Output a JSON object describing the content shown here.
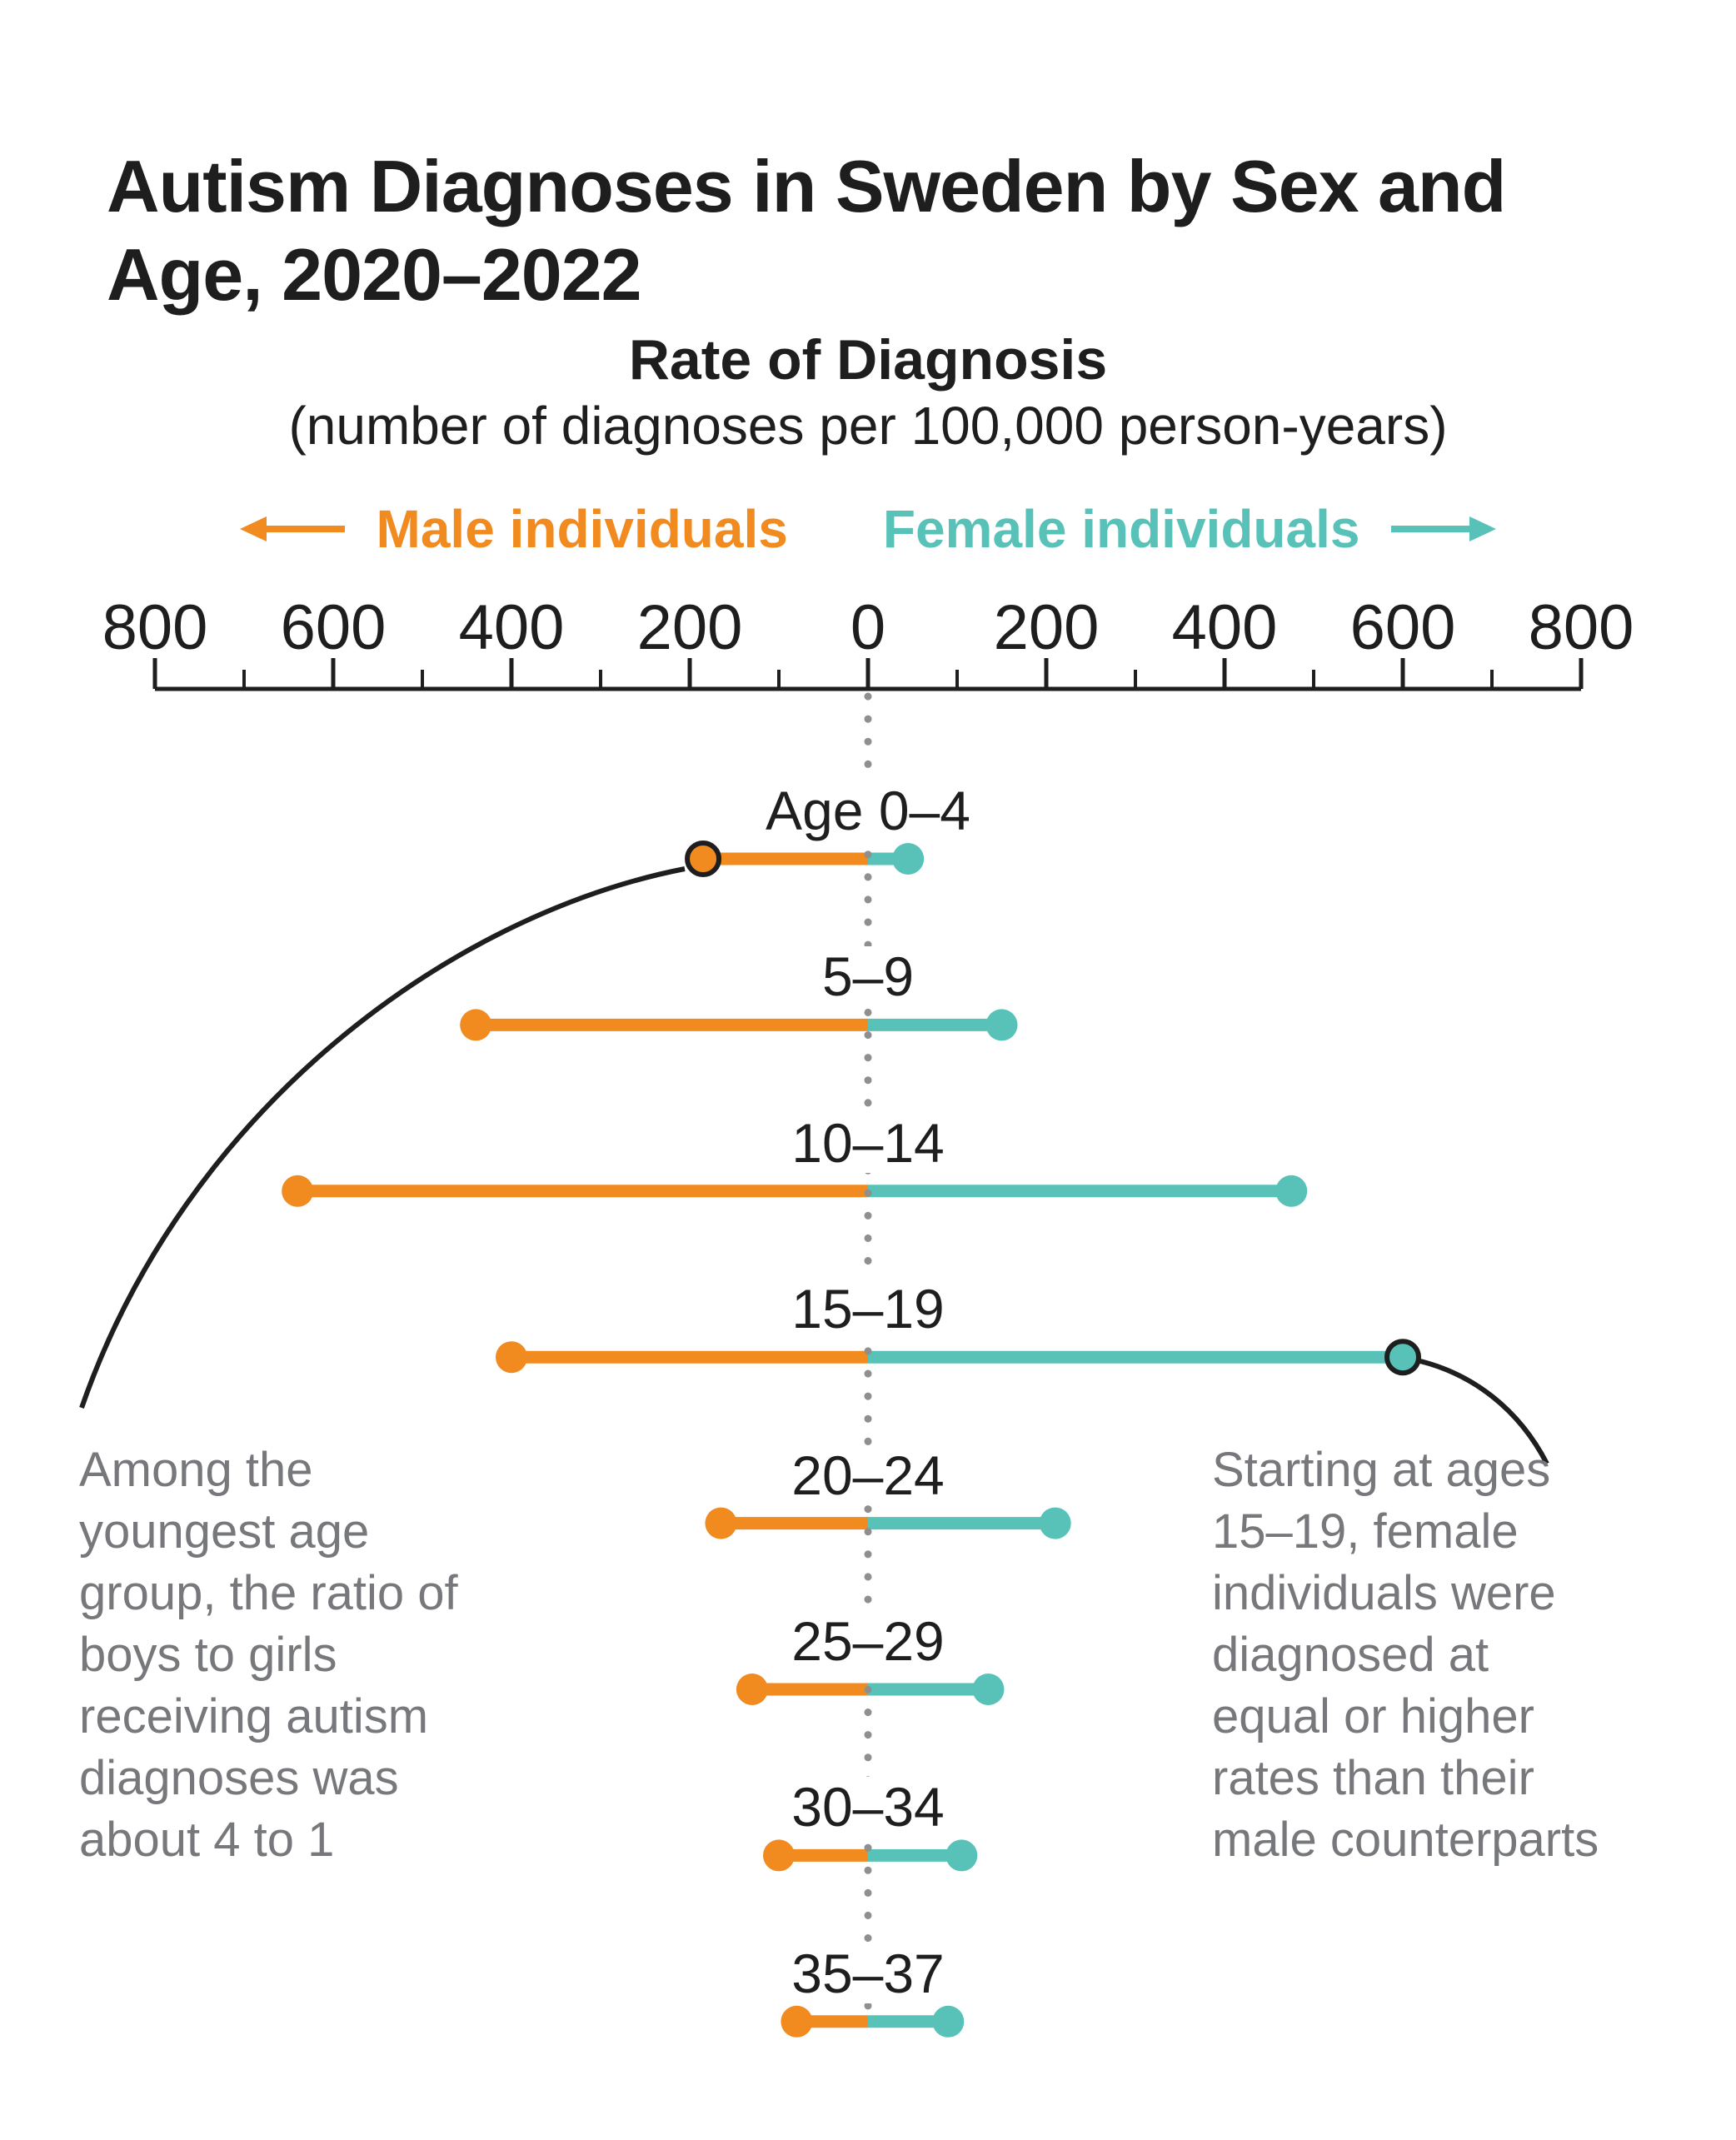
{
  "title": {
    "lines": [
      "Autism Diagnoses in Sweden by Sex and",
      "Age, 2020–2022"
    ]
  },
  "subtitle": {
    "heading": "Rate of Diagnosis",
    "detail": "(number of diagnoses per 100,000 person-years)"
  },
  "legend": {
    "male_label": "Male individuals",
    "female_label": "Female individuals"
  },
  "annotations": {
    "left": {
      "lines": [
        "Among the",
        "youngest age",
        "group, the ratio of",
        "boys to girls",
        "receiving autism",
        "diagnoses was",
        "about 4 to 1"
      ]
    },
    "right": {
      "lines": [
        "Starting at ages",
        "15–19, female",
        "individuals were",
        "diagnosed at",
        "equal or higher",
        "rates than their",
        "male counterparts"
      ]
    }
  },
  "colors": {
    "male": "#F18A1F",
    "female": "#58C2B9",
    "text": "#1E1E1E",
    "annotation": "#77787B",
    "dotted_line": "#8F8F8F"
  },
  "chart_data": {
    "type": "bar",
    "subtype": "diverging-lollipop",
    "title": "Rate of Diagnosis",
    "xlabel": "number of diagnoses per 100,000 person-years",
    "categories": [
      "Age 0–4",
      "5–9",
      "10–14",
      "15–19",
      "20–24",
      "25–29",
      "30–34",
      "35–37"
    ],
    "series": [
      {
        "name": "Male individuals",
        "direction": "left",
        "values": [
          185,
          440,
          640,
          400,
          165,
          130,
          100,
          80
        ]
      },
      {
        "name": "Female individuals",
        "direction": "right",
        "values": [
          45,
          150,
          475,
          600,
          210,
          135,
          105,
          90
        ]
      }
    ],
    "axis": {
      "min": -800,
      "max": 800,
      "major_tick_step": 200,
      "minor_tick_step": 100,
      "tick_labels": [
        "800",
        "600",
        "400",
        "200",
        "0",
        "200",
        "400",
        "600",
        "800"
      ]
    },
    "grid": false,
    "legend_position": "top",
    "annotated_points": [
      {
        "category": "Age 0–4",
        "series": "Male individuals"
      },
      {
        "category": "15–19",
        "series": "Female individuals"
      }
    ]
  }
}
